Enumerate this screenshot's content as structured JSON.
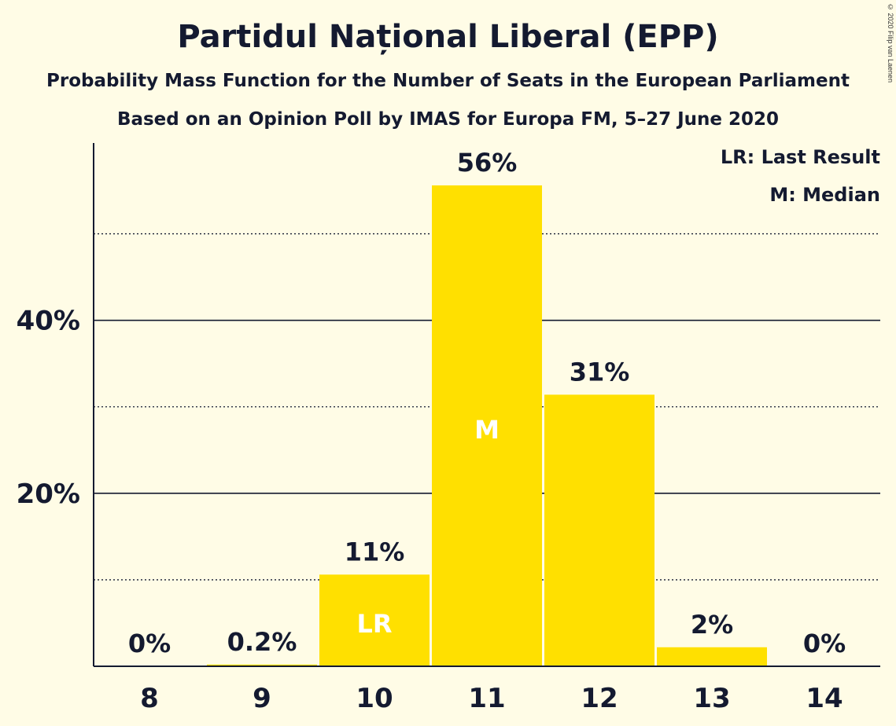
{
  "chart_data": {
    "type": "bar",
    "title": "Partidul Național Liberal (EPP)",
    "subtitle": "Probability Mass Function for the Number of Seats in the European Parliament",
    "subtitle2": "Based on an Opinion Poll by IMAS for Europa FM, 5–27 June 2020",
    "categories": [
      "8",
      "9",
      "10",
      "11",
      "12",
      "13",
      "14"
    ],
    "values": [
      0,
      0.2,
      10.6,
      55.6,
      31.4,
      2.2,
      0
    ],
    "value_labels": [
      "0%",
      "0.2%",
      "11%",
      "56%",
      "31%",
      "2%",
      "0%"
    ],
    "bar_annotations": [
      "",
      "",
      "LR",
      "M",
      "",
      "",
      ""
    ],
    "ylim": [
      0,
      60.5
    ],
    "yticks": [
      20,
      40
    ],
    "ytick_labels": [
      "20%",
      "40%"
    ],
    "minor_gridlines": [
      10,
      30,
      50
    ],
    "bar_color": "#FFE000",
    "legend": [
      "LR: Last Result",
      "M: Median"
    ],
    "legend_position": "top-right",
    "copyright": "© 2020 Filip van Laenen"
  }
}
